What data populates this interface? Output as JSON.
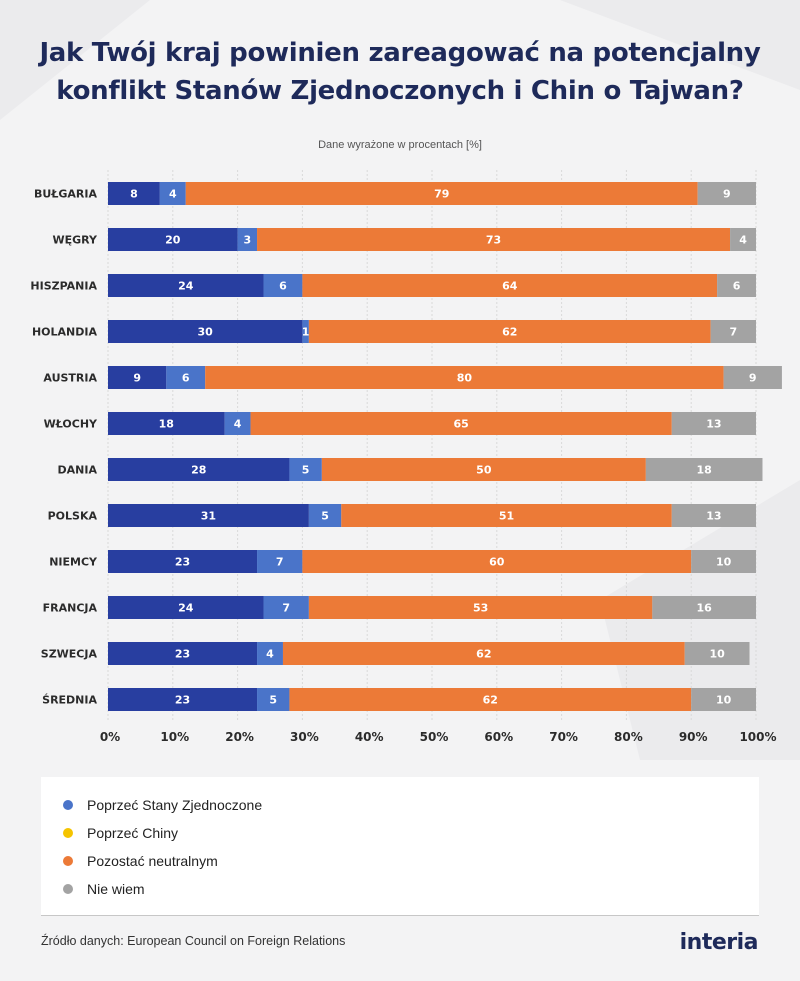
{
  "title_lines": [
    "Jak Twój kraj powinien zareagować na potencjalny",
    "konflikt Stanów Zjednoczonych i Chin o Tajwan?"
  ],
  "subtitle": "Dane wyrażone w procentach [%]",
  "colors": {
    "support_us": "#283ea0",
    "support_china": "#f5c400",
    "neutral": "#ec7a37",
    "dont_know": "#a3a3a3",
    "support_us_light": "#4a74c9"
  },
  "chart_data": {
    "type": "bar",
    "orientation": "horizontal",
    "stacked": true,
    "categories": [
      "BUŁGARIA",
      "WĘGRY",
      "HISZPANIA",
      "HOLANDIA",
      "AUSTRIA",
      "WŁOCHY",
      "DANIA",
      "POLSKA",
      "NIEMCY",
      "FRANCJA",
      "SZWECJA",
      "ŚREDNIA"
    ],
    "segments": [
      [
        8,
        4,
        79,
        9
      ],
      [
        20,
        3,
        73,
        4
      ],
      [
        24,
        6,
        64,
        6
      ],
      [
        30,
        1,
        62,
        7
      ],
      [
        9,
        6,
        80,
        9
      ],
      [
        18,
        4,
        65,
        13
      ],
      [
        28,
        5,
        50,
        18
      ],
      [
        31,
        5,
        51,
        13
      ],
      [
        23,
        7,
        60,
        10
      ],
      [
        24,
        7,
        53,
        16
      ],
      [
        23,
        4,
        62,
        10
      ],
      [
        23,
        5,
        62,
        10
      ]
    ],
    "segment_colors": [
      "#283ea0",
      "#4a74c9",
      "#ec7a37",
      "#a3a3a3"
    ],
    "xlim": [
      0,
      100
    ],
    "xticks": [
      "0%",
      "10%",
      "20%",
      "30%",
      "40%",
      "50%",
      "60%",
      "70%",
      "80%",
      "90%",
      "100%"
    ],
    "grid": true
  },
  "legend": [
    {
      "label": "Poprzeć Stany Zjednoczone",
      "color": "#4a74c9"
    },
    {
      "label": "Poprzeć Chiny",
      "color": "#f5c400"
    },
    {
      "label": "Pozostać neutralnym",
      "color": "#ec7a37"
    },
    {
      "label": "Nie wiem",
      "color": "#a3a3a3"
    }
  ],
  "source": "Źródło danych: European Council on Foreign Relations",
  "logo": "interia"
}
